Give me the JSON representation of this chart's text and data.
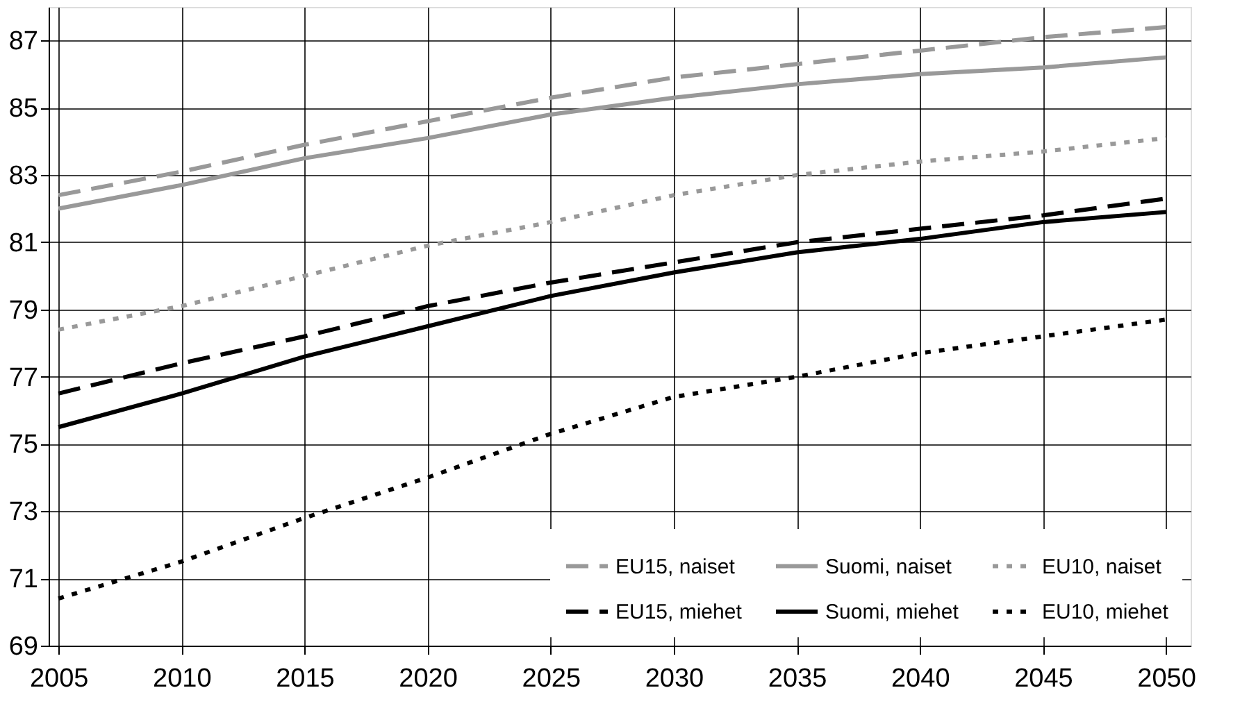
{
  "chart_data": {
    "type": "line",
    "x": [
      2005,
      2010,
      2015,
      2020,
      2025,
      2030,
      2035,
      2040,
      2045,
      2050
    ],
    "series": [
      {
        "name": "EU15, naiset",
        "color": "#999999",
        "line_style": "dashed",
        "values": [
          82.4,
          83.1,
          83.9,
          84.6,
          85.3,
          85.9,
          86.3,
          86.7,
          87.1,
          87.4
        ]
      },
      {
        "name": "Suomi, naiset",
        "color": "#999999",
        "line_style": "solid",
        "values": [
          82.0,
          82.7,
          83.5,
          84.1,
          84.8,
          85.3,
          85.7,
          86.0,
          86.2,
          86.5
        ]
      },
      {
        "name": "EU10, naiset",
        "color": "#999999",
        "line_style": "dotted",
        "values": [
          78.4,
          79.1,
          80.0,
          80.9,
          81.6,
          82.4,
          83.0,
          83.4,
          83.7,
          84.1
        ]
      },
      {
        "name": "EU15, miehet",
        "color": "#000000",
        "line_style": "dashed",
        "values": [
          76.5,
          77.4,
          78.2,
          79.1,
          79.8,
          80.4,
          81.0,
          81.4,
          81.8,
          82.3
        ]
      },
      {
        "name": "Suomi, miehet",
        "color": "#000000",
        "line_style": "solid",
        "values": [
          75.5,
          76.5,
          77.6,
          78.5,
          79.4,
          80.1,
          80.7,
          81.1,
          81.6,
          81.9
        ]
      },
      {
        "name": "EU10, miehet",
        "color": "#000000",
        "line_style": "dotted",
        "values": [
          70.4,
          71.5,
          72.8,
          74.0,
          75.3,
          76.4,
          77.0,
          77.7,
          78.2,
          78.7
        ]
      }
    ],
    "xlim": [
      2004.6,
      2051
    ],
    "xticks": [
      2005,
      2010,
      2015,
      2020,
      2025,
      2030,
      2035,
      2040,
      2045,
      2050
    ],
    "ylim": [
      69,
      88
    ],
    "yticks": [
      69,
      71,
      73,
      75,
      77,
      79,
      81,
      83,
      85,
      87
    ],
    "grid": true,
    "legend": "bottom right"
  }
}
